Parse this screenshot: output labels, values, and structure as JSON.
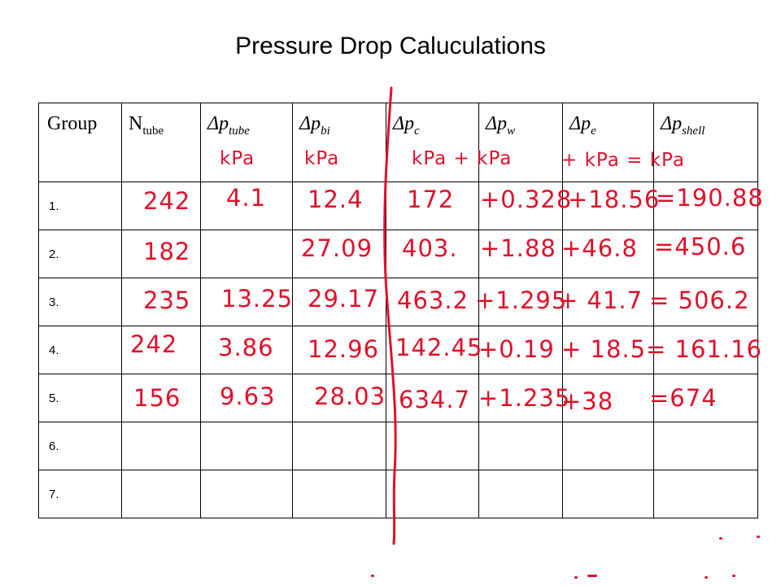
{
  "title": "Pressure Drop Caluculations",
  "table": {
    "headers": [
      {
        "base": "Group",
        "sub": ""
      },
      {
        "base": "N",
        "sub": "tube"
      },
      {
        "base": "Δp",
        "sub": "tube"
      },
      {
        "base": "Δp",
        "sub": "bi"
      },
      {
        "base": "Δp",
        "sub": "c"
      },
      {
        "base": "Δp",
        "sub": "w"
      },
      {
        "base": "Δp",
        "sub": "e"
      },
      {
        "base": "Δp",
        "sub": "shell"
      }
    ],
    "groups": [
      "1.",
      "2.",
      "3.",
      "4.",
      "5.",
      "6.",
      "7."
    ]
  },
  "handwriting": {
    "units": [
      "kPa",
      "kPa",
      "kPa + kPa",
      "+ kPa = kPa"
    ],
    "rows": [
      {
        "n_tube": "242",
        "dp_tube": "4.1",
        "dp_bi": "12.4",
        "dp_c": "172",
        "dp_w": "+0.328",
        "dp_e": "+18.56",
        "dp_shell": "=190.88"
      },
      {
        "n_tube": "182",
        "dp_tube": "",
        "dp_bi": "27.09",
        "dp_c": "403.",
        "dp_w": "+1.88",
        "dp_e": "+46.8",
        "dp_shell": "=450.6"
      },
      {
        "n_tube": "235",
        "dp_tube": "13.25",
        "dp_bi": "29.17",
        "dp_c": "463.2",
        "dp_w": "+1.295",
        "dp_e": "+ 41.7",
        "dp_shell": "= 506.2"
      },
      {
        "n_tube": "242",
        "dp_tube": "3.86",
        "dp_bi": "12.96",
        "dp_c": "142.45",
        "dp_w": "+0.19",
        "dp_e": "+ 18.5",
        "dp_shell": "= 161.16"
      },
      {
        "n_tube": "156",
        "dp_tube": "9.63",
        "dp_bi": "28.03",
        "dp_c": "634.7",
        "dp_w": "+1.235",
        "dp_e": "+38",
        "dp_shell": "=674"
      }
    ]
  },
  "colors": {
    "ink": "#e0102a",
    "text": "#000000",
    "background": "#ffffff"
  }
}
